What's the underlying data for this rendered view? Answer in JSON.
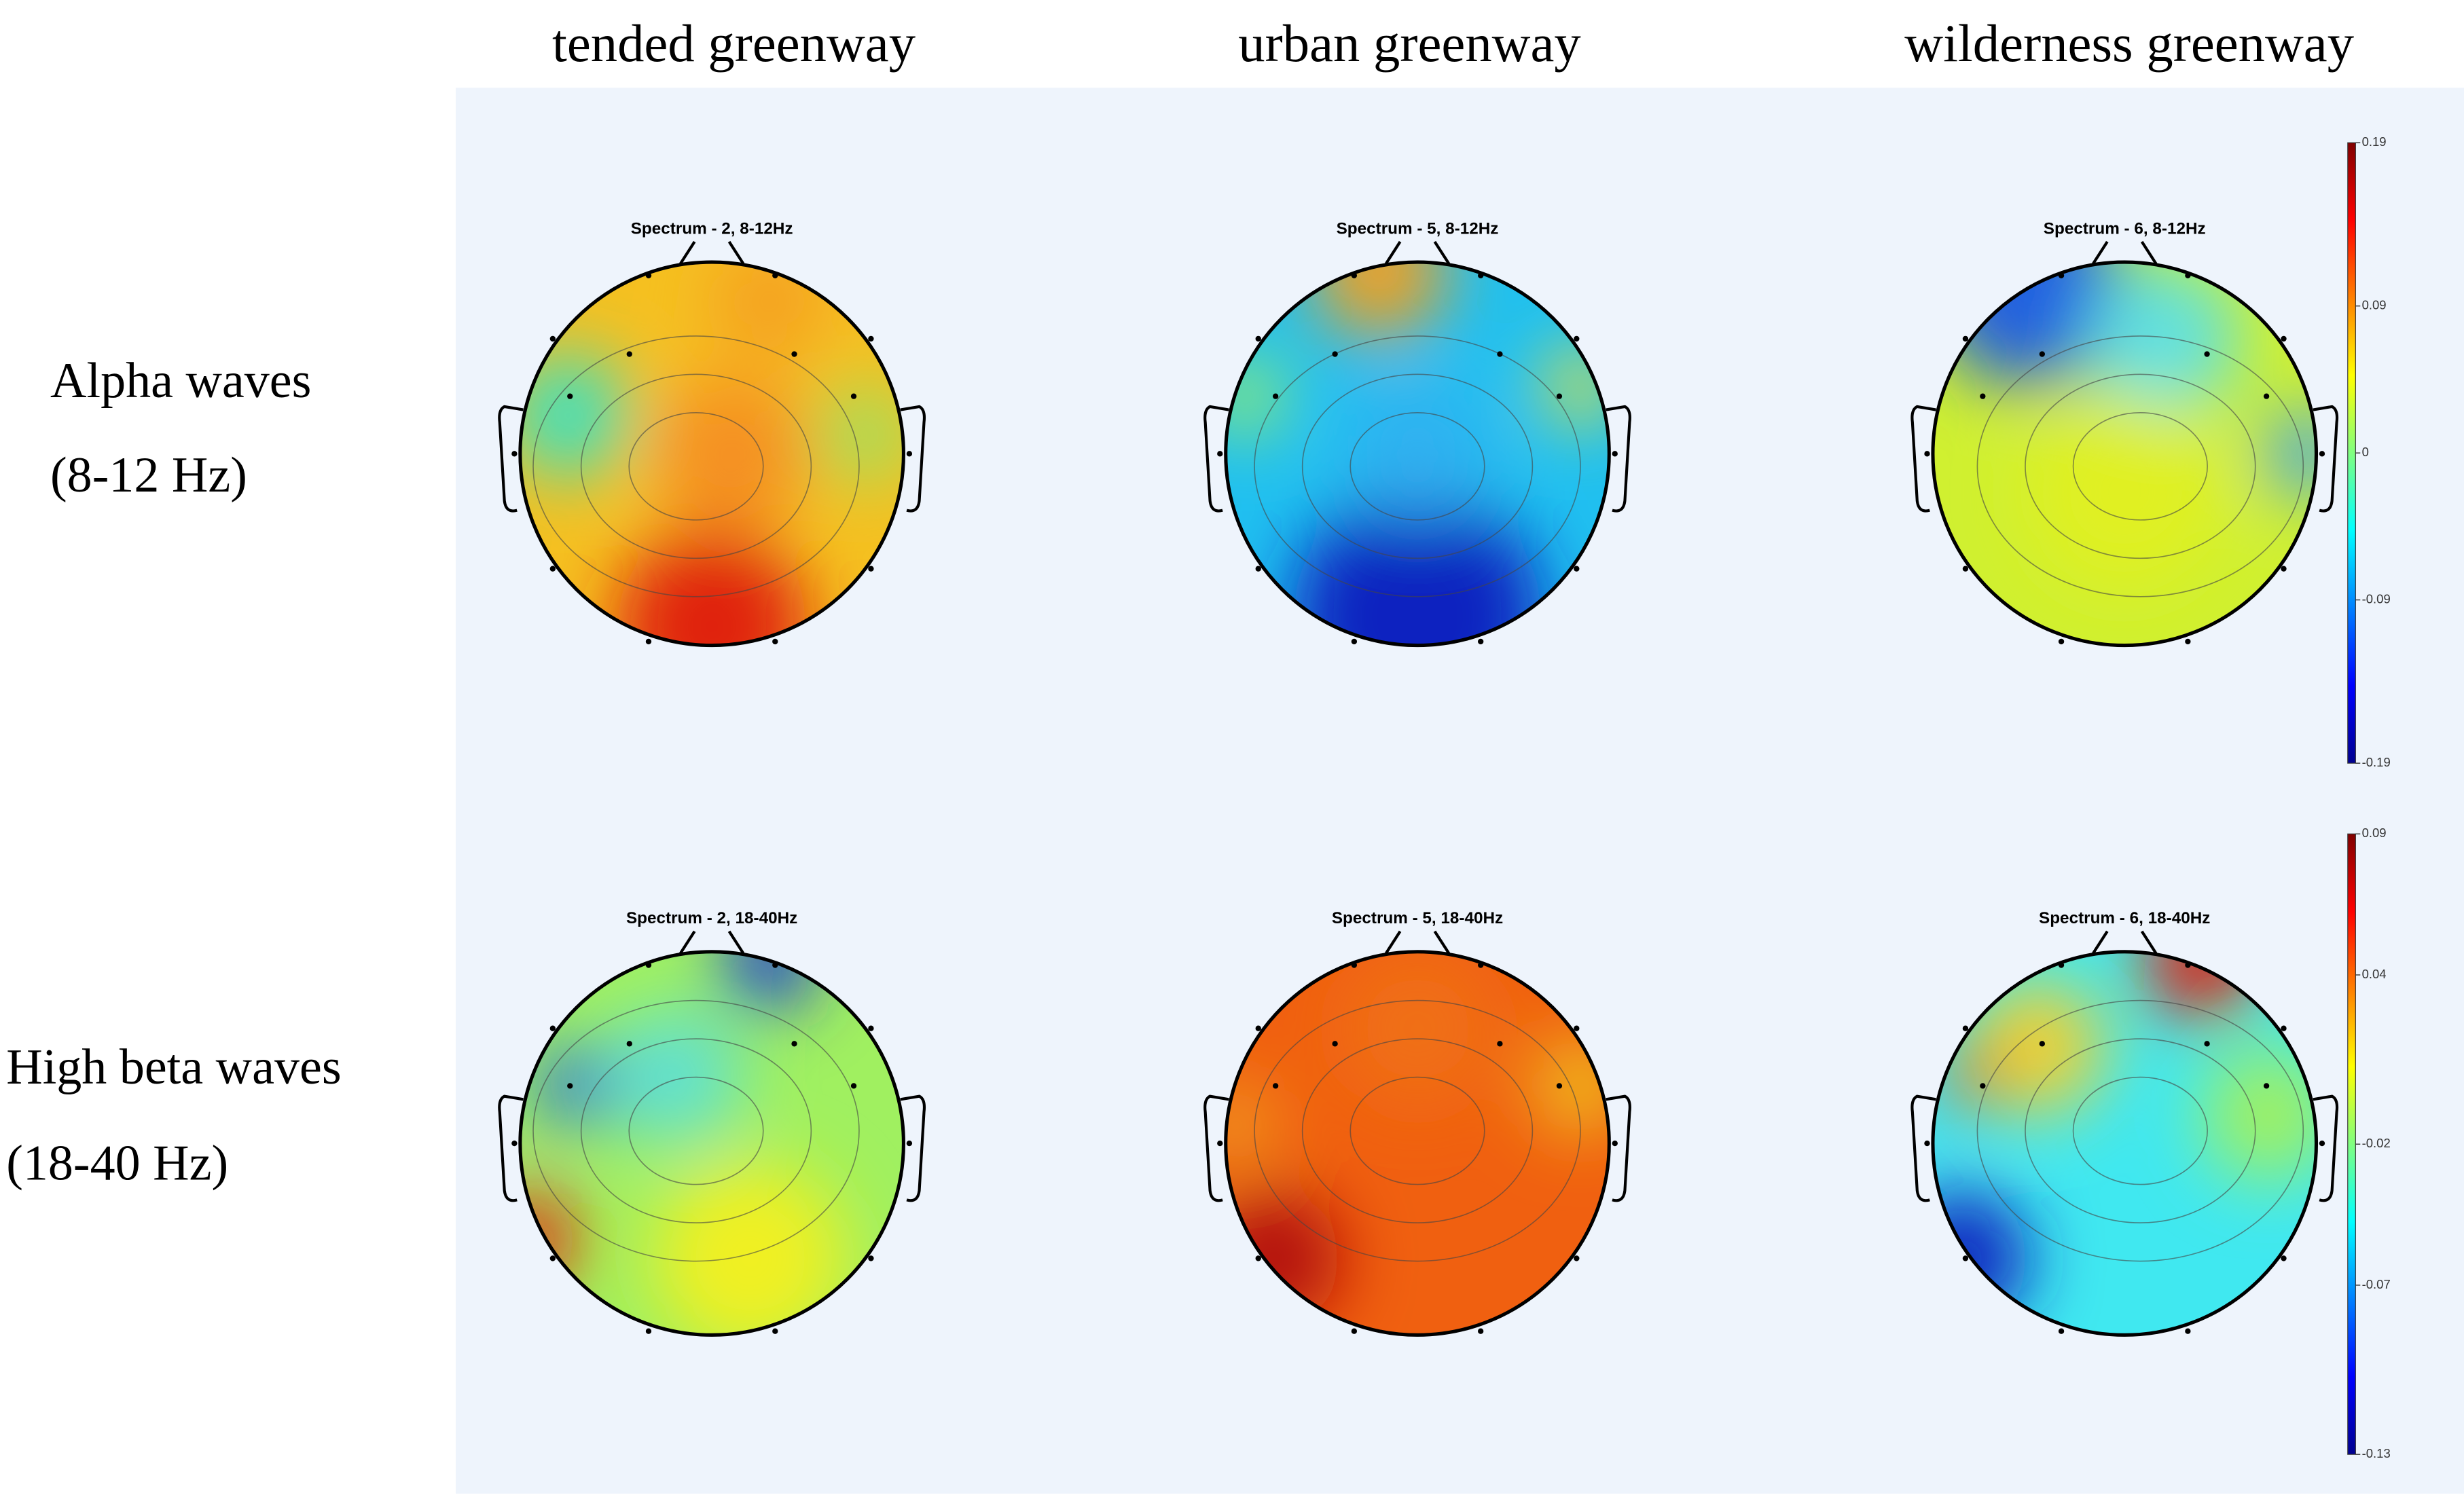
{
  "columns": [
    "tended greenway",
    "urban greenway",
    "wilderness greenway"
  ],
  "rows": [
    {
      "label": "Alpha waves",
      "sublabel": "(8-12 Hz)",
      "maps": [
        "Spectrum - 2, 8-12Hz",
        "Spectrum - 5, 8-12Hz",
        "Spectrum - 6, 8-12Hz"
      ],
      "colorbar": {
        "lim": [
          -0.19,
          0.19
        ],
        "ticks": [
          0.19,
          0.09,
          0,
          -0.09,
          -0.19
        ]
      }
    },
    {
      "label": "High beta waves",
      "sublabel": "(18-40 Hz)",
      "maps": [
        "Spectrum - 2, 18-40Hz",
        "Spectrum - 5, 18-40Hz",
        "Spectrum - 6, 18-40Hz"
      ],
      "colorbar": {
        "lim": [
          -0.13,
          0.09
        ],
        "ticks": [
          0.09,
          0.04,
          -0.02,
          -0.07,
          -0.13
        ]
      }
    }
  ]
}
